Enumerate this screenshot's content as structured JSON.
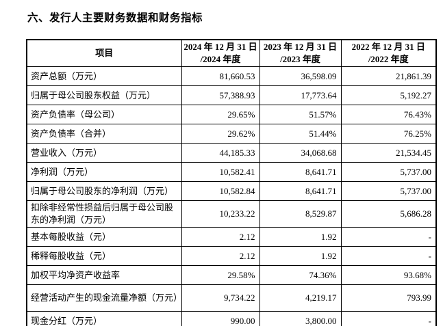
{
  "page": {
    "title": "六、发行人主要财务数据和财务指标"
  },
  "table": {
    "header": {
      "item": "项目",
      "col2024": {
        "line1": "2024 年 12 月 31 日",
        "line2": "/2024 年度"
      },
      "col2023": {
        "line1": "2023 年 12 月 31 日",
        "line2": "/2023 年度"
      },
      "col2022": {
        "line1": "2022 年 12 月 31 日",
        "line2": "/2022 年度"
      }
    },
    "rows": [
      {
        "label": "资产总额（万元）",
        "y2024": "81,660.53",
        "y2023": "36,598.09",
        "y2022": "21,861.39",
        "lines": 1
      },
      {
        "label": "归属于母公司股东权益（万元）",
        "y2024": "57,388.93",
        "y2023": "17,773.64",
        "y2022": "5,192.27",
        "lines": 1
      },
      {
        "label": "资产负债率（母公司）",
        "y2024": "29.65%",
        "y2023": "51.57%",
        "y2022": "76.43%",
        "lines": 1
      },
      {
        "label": "资产负债率（合并）",
        "y2024": "29.62%",
        "y2023": "51.44%",
        "y2022": "76.25%",
        "lines": 1
      },
      {
        "label": "营业收入（万元）",
        "y2024": "44,185.33",
        "y2023": "34,068.68",
        "y2022": "21,534.45",
        "lines": 1
      },
      {
        "label": "净利润（万元）",
        "y2024": "10,582.41",
        "y2023": "8,641.71",
        "y2022": "5,737.00",
        "lines": 1
      },
      {
        "label": "归属于母公司股东的净利润（万元）",
        "y2024": "10,582.84",
        "y2023": "8,641.71",
        "y2022": "5,737.00",
        "lines": 1
      },
      {
        "label": "扣除非经常性损益后归属于母公司股东的净利润（万元）",
        "y2024": "10,233.22",
        "y2023": "8,529.87",
        "y2022": "5,686.28",
        "lines": 2
      },
      {
        "label": "基本每股收益（元）",
        "y2024": "2.12",
        "y2023": "1.92",
        "y2022": "-",
        "lines": 1
      },
      {
        "label": "稀释每股收益（元）",
        "y2024": "2.12",
        "y2023": "1.92",
        "y2022": "-",
        "lines": 1
      },
      {
        "label": "加权平均净资产收益率",
        "y2024": "29.58%",
        "y2023": "74.36%",
        "y2022": "93.68%",
        "lines": 1
      },
      {
        "label": "经营活动产生的现金流量净额（万元）",
        "y2024": "9,734.22",
        "y2023": "4,219.17",
        "y2022": "793.99",
        "lines": 2
      },
      {
        "label": "现金分红（万元）",
        "y2024": "990.00",
        "y2023": "3,800.00",
        "y2022": "-",
        "lines": 1
      }
    ]
  }
}
